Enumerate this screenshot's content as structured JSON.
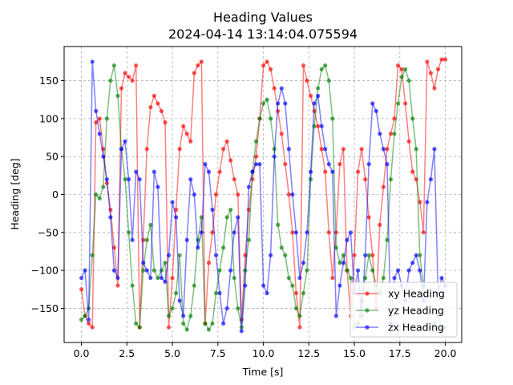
{
  "chart_data": {
    "type": "line",
    "title": "Heading Values",
    "subtitle": "2024-04-14 13:14:04.075594",
    "xlabel": "Time [s]",
    "ylabel": "Heading [deg]",
    "xlim": [
      -0.95,
      20.9
    ],
    "ylim": [
      -195,
      195
    ],
    "xticks": [
      0.0,
      2.5,
      5.0,
      7.5,
      10.0,
      12.5,
      15.0,
      17.5,
      20.0
    ],
    "xtick_labels": [
      "0.0",
      "2.5",
      "5.0",
      "7.5",
      "10.0",
      "12.5",
      "15.0",
      "17.5",
      "20.0"
    ],
    "yticks": [
      -150,
      -100,
      -50,
      0,
      50,
      100,
      150
    ],
    "ytick_labels": [
      "−150",
      "−100",
      "−50",
      "0",
      "50",
      "100",
      "150"
    ],
    "grid": true,
    "legend_position": "lower-right",
    "series": [
      {
        "name": "xy Heading",
        "color": "#ff0000",
        "x": [
          0.0,
          0.2,
          0.4,
          0.6,
          0.8,
          1.0,
          1.2,
          1.4,
          1.6,
          1.8,
          2.0,
          2.2,
          2.4,
          2.6,
          2.8,
          3.0,
          3.2,
          3.4,
          3.6,
          3.8,
          4.0,
          4.2,
          4.4,
          4.6,
          4.8,
          5.0,
          5.2,
          5.4,
          5.6,
          5.8,
          6.0,
          6.2,
          6.4,
          6.6,
          6.8,
          7.0,
          7.2,
          7.4,
          7.6,
          7.8,
          8.0,
          8.2,
          8.4,
          8.6,
          8.8,
          9.0,
          9.2,
          9.4,
          9.6,
          9.8,
          10.0,
          10.2,
          10.4,
          10.6,
          10.8,
          11.0,
          11.2,
          11.4,
          11.6,
          11.8,
          12.0,
          12.2,
          12.4,
          12.6,
          12.8,
          13.0,
          13.2,
          13.4,
          13.6,
          13.8,
          14.0,
          14.2,
          14.4,
          14.6,
          14.8,
          15.0,
          15.2,
          15.4,
          15.6,
          15.8,
          16.0,
          16.2,
          16.4,
          16.6,
          16.8,
          17.0,
          17.2,
          17.4,
          17.6,
          17.8,
          18.0,
          18.2,
          18.4,
          18.6,
          18.8,
          19.0,
          19.2,
          19.4,
          19.6,
          19.8,
          20.0
        ],
        "values": [
          -125,
          -160,
          -170,
          -175,
          95,
          100,
          60,
          15,
          -20,
          -70,
          -120,
          140,
          160,
          155,
          150,
          170,
          -175,
          -60,
          60,
          115,
          130,
          120,
          110,
          95,
          -175,
          -110,
          -20,
          60,
          90,
          80,
          70,
          160,
          170,
          175,
          -170,
          -90,
          -50,
          0,
          30,
          60,
          70,
          45,
          20,
          0,
          -165,
          -80,
          -20,
          20,
          50,
          100,
          170,
          175,
          165,
          140,
          110,
          80,
          40,
          0,
          -50,
          -130,
          -175,
          170,
          150,
          130,
          110,
          90,
          60,
          30,
          -50,
          -110,
          -50,
          40,
          60,
          -100,
          -160,
          -80,
          30,
          60,
          20,
          -30,
          -80,
          -150,
          -40,
          10,
          60,
          80,
          100,
          170,
          165,
          120,
          70,
          30,
          20,
          -10,
          -50,
          175,
          160,
          140,
          165,
          178,
          178
        ]
      },
      {
        "name": "yz Heading",
        "color": "#008000",
        "x": [
          0.0,
          0.2,
          0.4,
          0.6,
          0.8,
          1.0,
          1.2,
          1.4,
          1.6,
          1.8,
          2.0,
          2.2,
          2.4,
          2.6,
          2.8,
          3.0,
          3.2,
          3.4,
          3.6,
          3.8,
          4.0,
          4.2,
          4.4,
          4.6,
          4.8,
          5.0,
          5.2,
          5.4,
          5.6,
          5.8,
          6.0,
          6.2,
          6.4,
          6.6,
          6.8,
          7.0,
          7.2,
          7.4,
          7.6,
          7.8,
          8.0,
          8.2,
          8.4,
          8.6,
          8.8,
          9.0,
          9.2,
          9.4,
          9.6,
          9.8,
          10.0,
          10.2,
          10.4,
          10.6,
          10.8,
          11.0,
          11.2,
          11.4,
          11.6,
          11.8,
          12.0,
          12.2,
          12.4,
          12.6,
          12.8,
          13.0,
          13.2,
          13.4,
          13.6,
          13.8,
          14.0,
          14.2,
          14.4,
          14.6,
          14.8,
          15.0,
          15.2,
          15.4,
          15.6,
          15.8,
          16.0,
          16.2,
          16.4,
          16.6,
          16.8,
          17.0,
          17.2,
          17.4,
          17.6,
          17.8,
          18.0,
          18.2,
          18.4,
          18.6,
          18.8,
          19.0,
          19.2,
          19.4,
          19.6,
          19.8,
          20.0
        ],
        "values": [
          -165,
          -160,
          -150,
          -80,
          0,
          -5,
          10,
          100,
          150,
          170,
          130,
          60,
          20,
          -50,
          -120,
          -170,
          -175,
          -100,
          -60,
          -40,
          -100,
          -110,
          -100,
          -90,
          -160,
          -150,
          -130,
          -80,
          -170,
          -178,
          -160,
          -120,
          -60,
          -30,
          -170,
          -178,
          -170,
          -130,
          -100,
          -70,
          -30,
          -20,
          -110,
          -150,
          -175,
          -100,
          -60,
          30,
          70,
          100,
          120,
          125,
          100,
          60,
          -40,
          -70,
          -80,
          -110,
          -120,
          -150,
          -160,
          -130,
          -100,
          20,
          90,
          140,
          165,
          170,
          150,
          100,
          -70,
          -90,
          -80,
          -100,
          -110,
          -175,
          -170,
          -140,
          -110,
          -80,
          -100,
          -120,
          -130,
          -110,
          -60,
          20,
          80,
          120,
          155,
          165,
          150,
          100,
          60,
          -80,
          -120,
          -150,
          -175,
          -170,
          -160,
          -178,
          -175
        ]
      },
      {
        "name": "zx Heading",
        "color": "#0000ff",
        "x": [
          0.0,
          0.2,
          0.4,
          0.6,
          0.8,
          1.0,
          1.2,
          1.4,
          1.6,
          1.8,
          2.0,
          2.2,
          2.4,
          2.6,
          2.8,
          3.0,
          3.2,
          3.4,
          3.6,
          3.8,
          4.0,
          4.2,
          4.4,
          4.6,
          4.8,
          5.0,
          5.2,
          5.4,
          5.6,
          5.8,
          6.0,
          6.2,
          6.4,
          6.6,
          6.8,
          7.0,
          7.2,
          7.4,
          7.6,
          7.8,
          8.0,
          8.2,
          8.4,
          8.6,
          8.8,
          9.0,
          9.2,
          9.4,
          9.6,
          9.8,
          10.0,
          10.2,
          10.4,
          10.6,
          10.8,
          11.0,
          11.2,
          11.4,
          11.6,
          11.8,
          12.0,
          12.2,
          12.4,
          12.6,
          12.8,
          13.0,
          13.2,
          13.4,
          13.6,
          13.8,
          14.0,
          14.2,
          14.4,
          14.6,
          14.8,
          15.0,
          15.2,
          15.4,
          15.6,
          15.8,
          16.0,
          16.2,
          16.4,
          16.6,
          16.8,
          17.0,
          17.2,
          17.4,
          17.6,
          17.8,
          18.0,
          18.2,
          18.4,
          18.6,
          18.8,
          19.0,
          19.2,
          19.4,
          19.6,
          19.8,
          20.0
        ],
        "values": [
          -110,
          -100,
          -165,
          175,
          110,
          80,
          50,
          20,
          -30,
          -100,
          -110,
          60,
          70,
          20,
          -60,
          30,
          20,
          -90,
          -100,
          -110,
          30,
          10,
          -110,
          -115,
          -80,
          -10,
          -30,
          -140,
          -160,
          -60,
          20,
          0,
          -70,
          -50,
          40,
          30,
          -20,
          -80,
          -130,
          -170,
          -150,
          -100,
          -50,
          -30,
          -180,
          -120,
          10,
          30,
          40,
          40,
          -120,
          -130,
          -80,
          50,
          120,
          140,
          120,
          60,
          0,
          -50,
          -110,
          -90,
          -50,
          30,
          120,
          130,
          90,
          60,
          40,
          30,
          -160,
          -120,
          -90,
          -60,
          -50,
          -130,
          -100,
          -160,
          -80,
          40,
          120,
          110,
          80,
          60,
          40,
          -170,
          -110,
          -100,
          -120,
          -140,
          -100,
          -90,
          -80,
          -100,
          -140,
          -10,
          20,
          60,
          -130,
          -110,
          -120
        ]
      }
    ]
  }
}
